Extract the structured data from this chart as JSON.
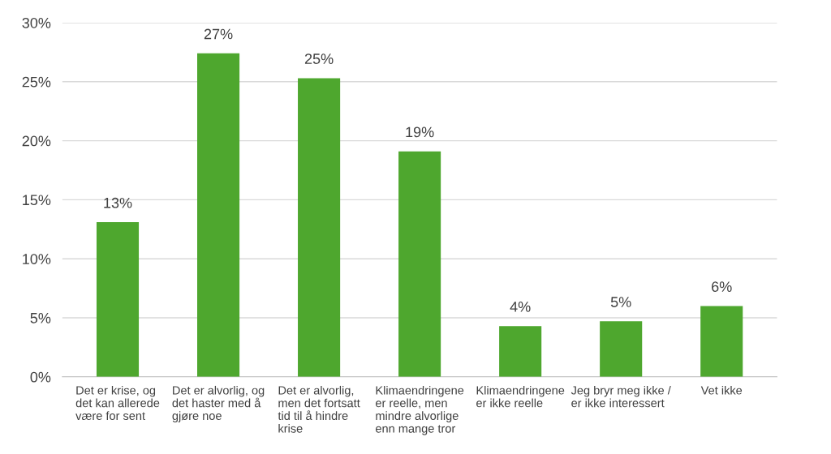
{
  "chart_data": {
    "type": "bar",
    "categories": [
      "Det er krise, og\ndet kan allerede\nvære for sent",
      "Det er alvorlig, og\ndet haster med å\ngjøre noe",
      "Det er alvorlig,\nmen det fortsatt\ntid til å hindre\nkrise",
      "Klimaendringene\ner reelle, men\nmindre alvorlige\nenn mange tror",
      "Klimaendringene\ner ikke reelle",
      "Jeg bryr meg ikke /\ner ikke interessert",
      "Vet ikke"
    ],
    "values": [
      13.1,
      27.4,
      25.3,
      19.1,
      4.3,
      4.7,
      6.0
    ],
    "value_labels": [
      "13%",
      "27%",
      "25%",
      "19%",
      "4%",
      "5%",
      "6%"
    ],
    "color": "#4ea72e",
    "ylim": [
      0,
      30
    ],
    "yticks": [
      {
        "value": 0,
        "label": "0%"
      },
      {
        "value": 5,
        "label": "5%"
      },
      {
        "value": 10,
        "label": "10%"
      },
      {
        "value": 15,
        "label": "15%"
      },
      {
        "value": 20,
        "label": "20%"
      },
      {
        "value": 25,
        "label": "25%"
      },
      {
        "value": 30,
        "label": "30%"
      }
    ],
    "grid": "y"
  }
}
